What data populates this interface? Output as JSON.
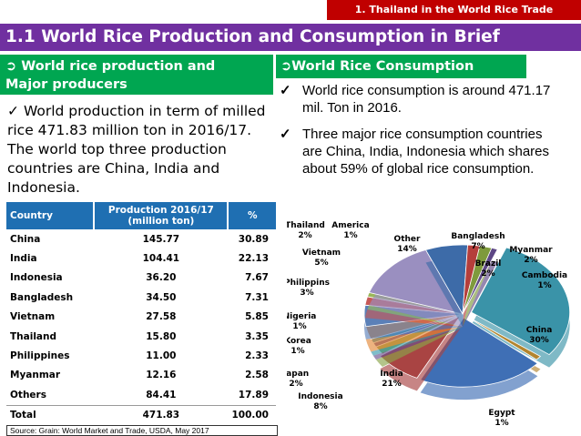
{
  "header": {
    "section_label": "1. Thailand in the World Rice Trade",
    "title": "1.1 World  Rice Production and Consumption in Brief"
  },
  "production": {
    "heading_line1": "World rice production and",
    "heading_line2": "Major  producers",
    "text": "World production in term of milled rice 471.83 million ton in 2016/17. The world top three production countries are China, India and Indonesia."
  },
  "consumption": {
    "heading": "World Rice Consumption",
    "items": [
      "World rice consumption is around 471.17 mil. Ton in 2016.",
      "Three major rice consumption countries are China, India, Indonesia which shares about  59% of global rice consumption."
    ]
  },
  "table": {
    "headers": [
      "Country",
      "Production 2016/17 (million ton)",
      "%"
    ],
    "rows": [
      [
        "China",
        "145.77",
        "30.89"
      ],
      [
        "India",
        "104.41",
        "22.13"
      ],
      [
        "Indonesia",
        "36.20",
        "7.67"
      ],
      [
        "Bangladesh",
        "34.50",
        "7.31"
      ],
      [
        "Vietnam",
        "27.58",
        "5.85"
      ],
      [
        "Thailand",
        "15.80",
        "3.35"
      ],
      [
        "Philippines",
        "11.00",
        "2.33"
      ],
      [
        "Myanmar",
        "12.16",
        "2.58"
      ],
      [
        "Others",
        "84.41",
        "17.89"
      ],
      [
        "Total",
        "471.83",
        "100.00"
      ]
    ]
  },
  "source": "Source: Grain: World Market and Trade, USDA, May 2017",
  "chart_data": {
    "type": "pie",
    "slices": [
      {
        "label": "China",
        "value": 30,
        "pct": "30%",
        "color": "#3a93a8"
      },
      {
        "label": "Egypt",
        "value": 1,
        "pct": "1%",
        "color": "#b3852f"
      },
      {
        "label": "India",
        "value": 21,
        "pct": "21%",
        "color": "#3f6fb5"
      },
      {
        "label": "Indonesia",
        "value": 8,
        "pct": "8%",
        "color": "#a94443"
      },
      {
        "label": "Japan",
        "value": 2,
        "pct": "2%",
        "color": "#8aa44c"
      },
      {
        "label": "Korea",
        "value": 1,
        "pct": "1%",
        "color": "#6a5190"
      },
      {
        "label": "Nigeria",
        "value": 1,
        "pct": "1%",
        "color": "#3b99ad"
      },
      {
        "label": "Philippins",
        "value": 3,
        "pct": "3%",
        "color": "#e38a3b"
      },
      {
        "label": "Vietnam",
        "value": 5,
        "pct": "5%",
        "color": "#5b80b8"
      },
      {
        "label": "Thailand",
        "value": 2,
        "pct": "2%",
        "color": "#c65957"
      },
      {
        "label": "America",
        "value": 1,
        "pct": "1%",
        "color": "#9ab75a"
      },
      {
        "label": "Other",
        "value": 14,
        "pct": "14%",
        "color": "#9a8fc0"
      },
      {
        "label": "Bangladesh",
        "value": 7,
        "pct": "7%",
        "color": "#3d6ba8"
      },
      {
        "label": "Brazil",
        "value": 2,
        "pct": "2%",
        "color": "#b53e3b"
      },
      {
        "label": "Myanmar",
        "value": 2,
        "pct": "2%",
        "color": "#7e9a3c"
      },
      {
        "label": "Cambodia",
        "value": 1,
        "pct": "1%",
        "color": "#5d4785"
      }
    ]
  }
}
